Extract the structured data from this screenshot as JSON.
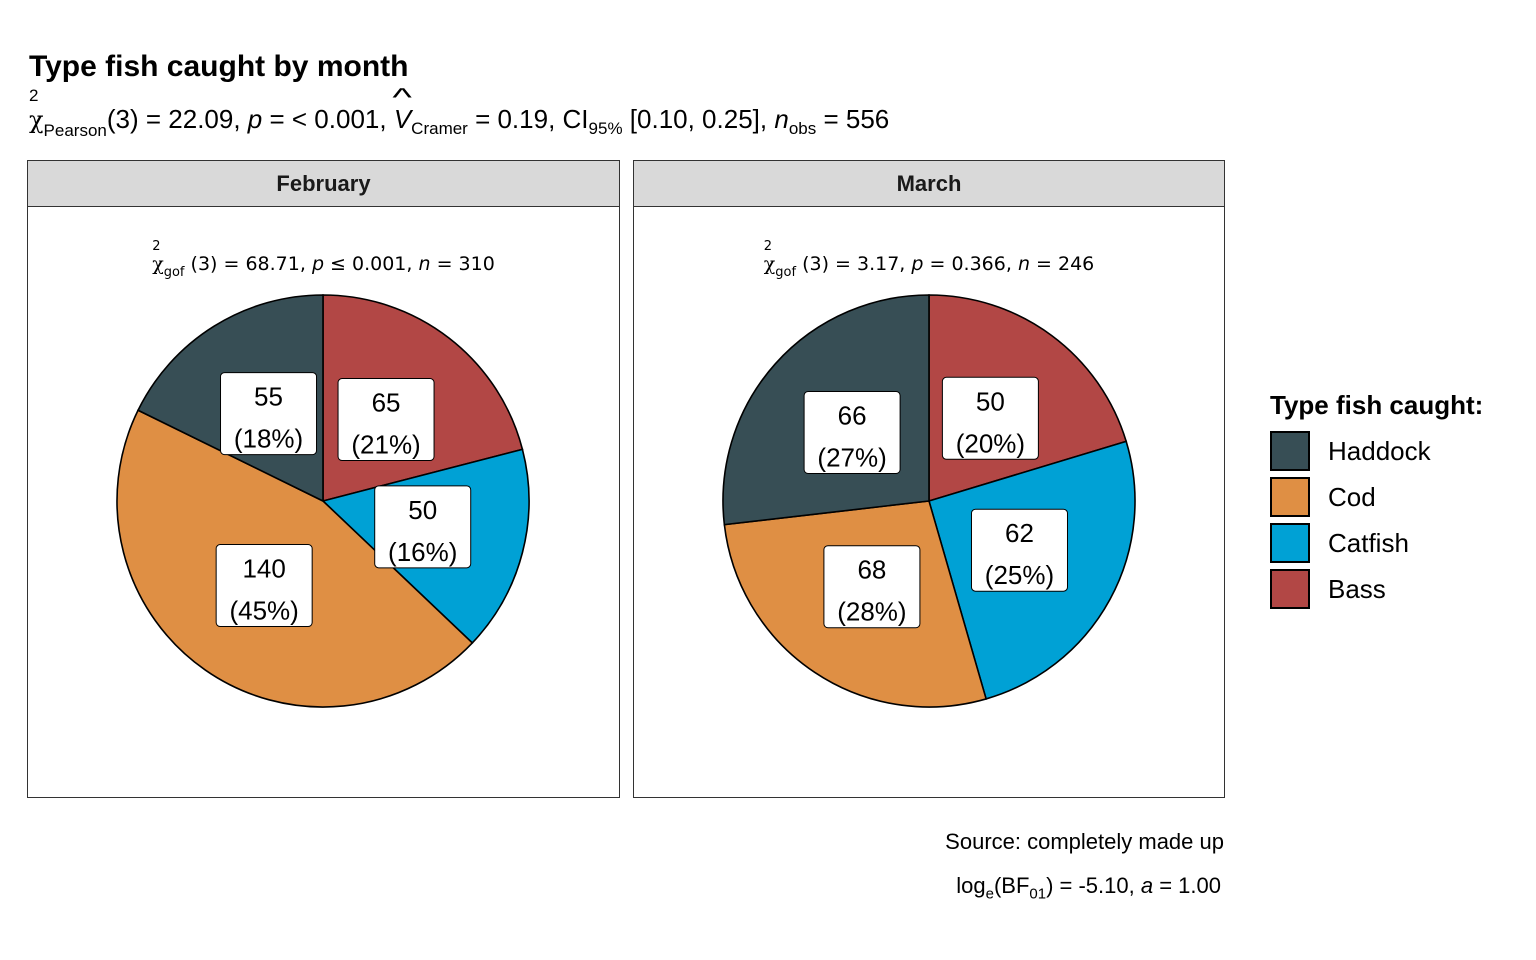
{
  "chart_data": {
    "type": "pie",
    "title": "Type fish caught by month",
    "subtitle": {
      "chi_symbol": "χ",
      "chi_sup": "2",
      "chi_sub": "Pearson",
      "part1": "(3) = 22.09, ",
      "p_sym": "p",
      "part2": " = < 0.001, ",
      "v_sym": "V",
      "v_sub": "Cramer",
      "part3": " = 0.19, CI",
      "ci_sub": "95%",
      "part4": " [0.10, 0.25], ",
      "n_sym": "n",
      "n_sub": "obs",
      "part5": " = 556"
    },
    "legend": {
      "title": "Type fish caught:",
      "items": [
        {
          "label": "Haddock",
          "color": "#374E55"
        },
        {
          "label": "Cod",
          "color": "#DF8F44"
        },
        {
          "label": "Catfish",
          "color": "#00A1D5"
        },
        {
          "label": "Bass",
          "color": "#B24745"
        }
      ]
    },
    "facets": [
      {
        "name": "February",
        "stat": {
          "chi": "χ",
          "sup": "2",
          "sub": "gof",
          "t1": "(3) = 68.71,  ",
          "p": "p",
          "t2": " ≤ 0.001,  ",
          "n": "n",
          "t3": " = 310"
        },
        "slices": [
          {
            "category": "Bass",
            "count": 65,
            "percent": "21%"
          },
          {
            "category": "Catfish",
            "count": 50,
            "percent": "16%"
          },
          {
            "category": "Cod",
            "count": 140,
            "percent": "45%"
          },
          {
            "category": "Haddock",
            "count": 55,
            "percent": "18%"
          }
        ]
      },
      {
        "name": "March",
        "stat": {
          "chi": "χ",
          "sup": "2",
          "sub": "gof",
          "t1": "(3) = 3.17,  ",
          "p": "p",
          "t2": " = 0.366,  ",
          "n": "n",
          "t3": " = 246"
        },
        "slices": [
          {
            "category": "Bass",
            "count": 50,
            "percent": "20%"
          },
          {
            "category": "Catfish",
            "count": 62,
            "percent": "25%"
          },
          {
            "category": "Cod",
            "count": 68,
            "percent": "28%"
          },
          {
            "category": "Haddock",
            "count": 66,
            "percent": "27%"
          }
        ]
      }
    ],
    "caption": "Source: completely made up",
    "bf": {
      "log": "log",
      "log_sub": "e",
      "bf": "(BF",
      "bf_sub": "01",
      "rest1": ") = -5.10, ",
      "a_sym": "a",
      "rest2": " = 1.00"
    }
  }
}
